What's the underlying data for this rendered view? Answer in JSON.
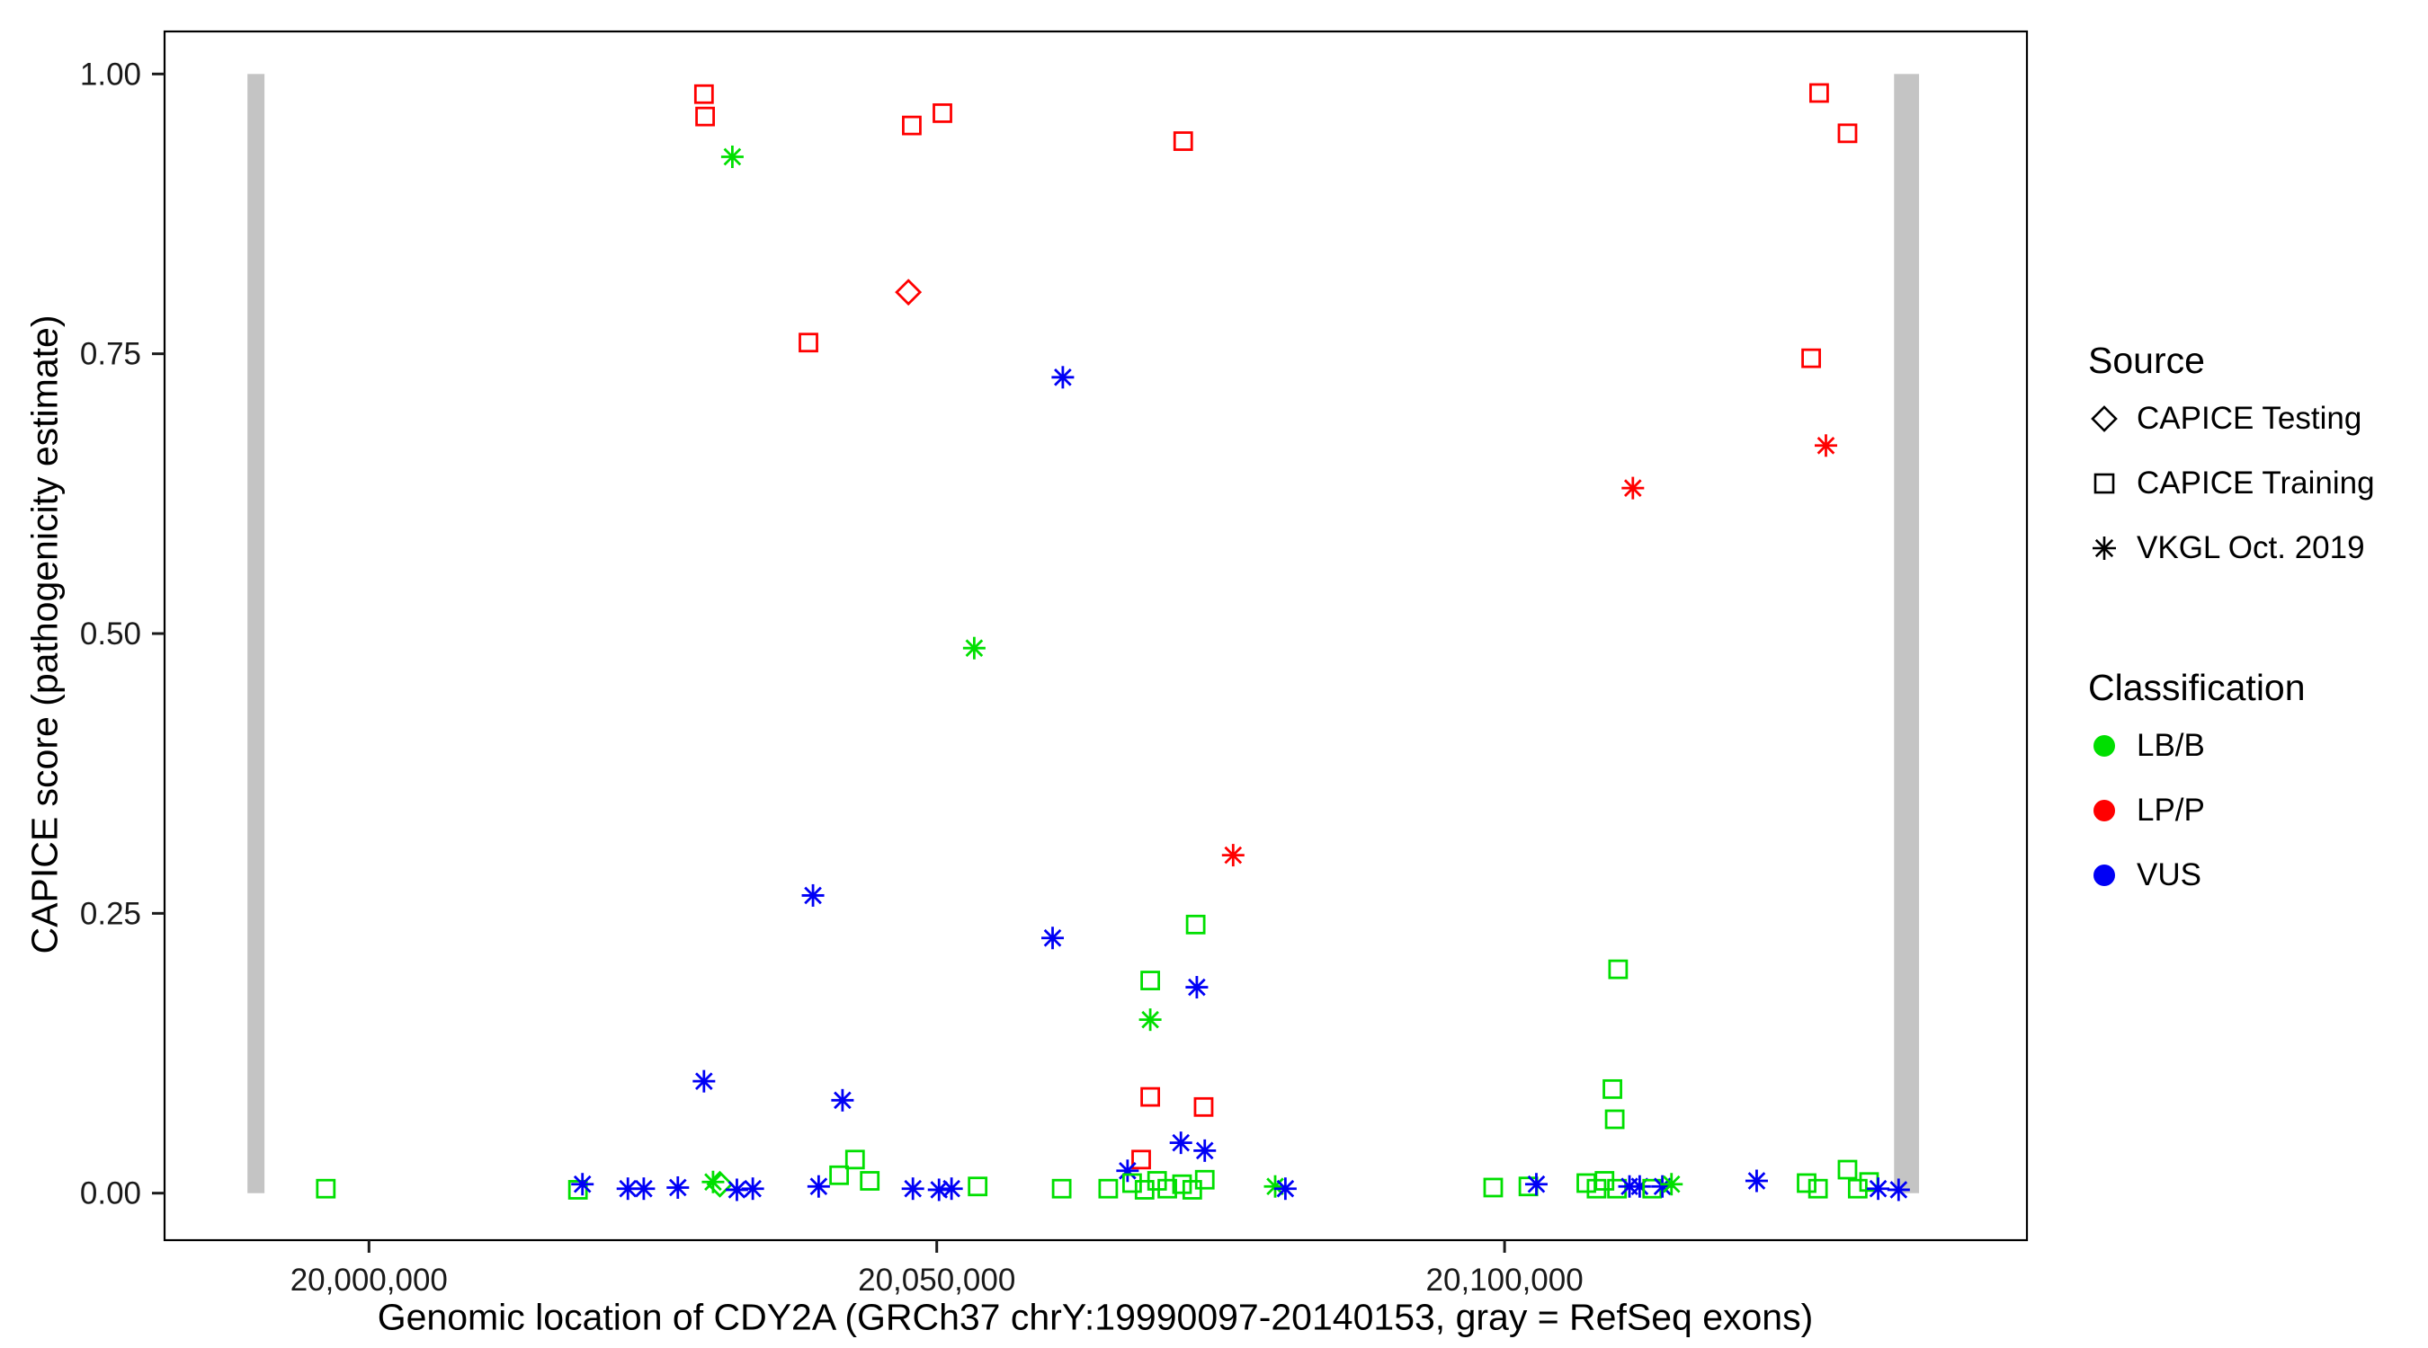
{
  "legend": {
    "source": {
      "title": "Source",
      "items": [
        {
          "label": "CAPICE Testing",
          "marker": "diamond"
        },
        {
          "label": "CAPICE Training",
          "marker": "square"
        },
        {
          "label": "VKGL Oct. 2019",
          "marker": "asterisk"
        }
      ]
    },
    "classification": {
      "title": "Classification",
      "items": [
        {
          "label": "LB/B",
          "color": "#00DF00"
        },
        {
          "label": "LP/P",
          "color": "#FF0000"
        },
        {
          "label": "VUS",
          "color": "#0000F5"
        }
      ]
    }
  },
  "chart_data": {
    "type": "scatter",
    "title": "",
    "xlabel": "Genomic location of CDY2A (GRCh37 chrY:19990097-20140153, gray = RefSeq exons)",
    "ylabel": "CAPICE score (pathogenicity estimate)",
    "x_domain": [
      19982000,
      20146000
    ],
    "y_domain": [
      -0.042,
      1.038
    ],
    "x_ticks": [
      {
        "value": 20000000,
        "label": "20,000,000"
      },
      {
        "value": 20050000,
        "label": "20,050,000"
      },
      {
        "value": 20100000,
        "label": "20,100,000"
      }
    ],
    "y_ticks": [
      {
        "value": 0.0,
        "label": "0.00"
      },
      {
        "value": 0.25,
        "label": "0.25"
      },
      {
        "value": 0.5,
        "label": "0.50"
      },
      {
        "value": 0.75,
        "label": "0.75"
      },
      {
        "value": 1.0,
        "label": "1.00"
      }
    ],
    "grid": false,
    "legend_position": "right",
    "exon_color": "#C4C4C4",
    "exons": [
      {
        "start": 19989300,
        "end": 19990800
      },
      {
        "start": 20134300,
        "end": 20136500
      }
    ],
    "class_colors": {
      "LB/B": "#00DF00",
      "LP/P": "#FF0000",
      "VUS": "#0000F5"
    },
    "source_markers": {
      "testing": "diamond",
      "training": "square",
      "vkgl": "asterisk"
    },
    "points": [
      {
        "x": 20029500,
        "y": 0.982,
        "src": "training",
        "cls": "LP/P"
      },
      {
        "x": 20029600,
        "y": 0.962,
        "src": "training",
        "cls": "LP/P"
      },
      {
        "x": 20032000,
        "y": 0.926,
        "src": "vkgl",
        "cls": "LB/B"
      },
      {
        "x": 20038700,
        "y": 0.76,
        "src": "training",
        "cls": "LP/P"
      },
      {
        "x": 20047500,
        "y": 0.805,
        "src": "testing",
        "cls": "LP/P"
      },
      {
        "x": 20047800,
        "y": 0.954,
        "src": "training",
        "cls": "LP/P"
      },
      {
        "x": 20050500,
        "y": 0.965,
        "src": "training",
        "cls": "LP/P"
      },
      {
        "x": 20071700,
        "y": 0.94,
        "src": "training",
        "cls": "LP/P"
      },
      {
        "x": 20061100,
        "y": 0.729,
        "src": "vkgl",
        "cls": "VUS"
      },
      {
        "x": 20053300,
        "y": 0.487,
        "src": "vkgl",
        "cls": "LB/B"
      },
      {
        "x": 20111300,
        "y": 0.63,
        "src": "vkgl",
        "cls": "LP/P"
      },
      {
        "x": 20127700,
        "y": 0.983,
        "src": "training",
        "cls": "LP/P"
      },
      {
        "x": 20130200,
        "y": 0.947,
        "src": "training",
        "cls": "LP/P"
      },
      {
        "x": 20127000,
        "y": 0.746,
        "src": "training",
        "cls": "LP/P"
      },
      {
        "x": 20128300,
        "y": 0.668,
        "src": "vkgl",
        "cls": "LP/P"
      },
      {
        "x": 20076100,
        "y": 0.302,
        "src": "vkgl",
        "cls": "LP/P"
      },
      {
        "x": 20039100,
        "y": 0.266,
        "src": "vkgl",
        "cls": "VUS"
      },
      {
        "x": 20060200,
        "y": 0.228,
        "src": "vkgl",
        "cls": "VUS"
      },
      {
        "x": 20072800,
        "y": 0.24,
        "src": "training",
        "cls": "LB/B"
      },
      {
        "x": 20068800,
        "y": 0.19,
        "src": "training",
        "cls": "LB/B"
      },
      {
        "x": 20072900,
        "y": 0.184,
        "src": "vkgl",
        "cls": "VUS"
      },
      {
        "x": 20068800,
        "y": 0.155,
        "src": "vkgl",
        "cls": "LB/B"
      },
      {
        "x": 20029500,
        "y": 0.1,
        "src": "vkgl",
        "cls": "VUS"
      },
      {
        "x": 20041700,
        "y": 0.083,
        "src": "vkgl",
        "cls": "VUS"
      },
      {
        "x": 20068800,
        "y": 0.086,
        "src": "training",
        "cls": "LP/P"
      },
      {
        "x": 20073500,
        "y": 0.077,
        "src": "training",
        "cls": "LP/P"
      },
      {
        "x": 20068000,
        "y": 0.03,
        "src": "training",
        "cls": "LP/P"
      },
      {
        "x": 20110000,
        "y": 0.2,
        "src": "training",
        "cls": "LB/B"
      },
      {
        "x": 20109500,
        "y": 0.093,
        "src": "training",
        "cls": "LB/B"
      },
      {
        "x": 20109700,
        "y": 0.066,
        "src": "training",
        "cls": "LB/B"
      },
      {
        "x": 20071500,
        "y": 0.045,
        "src": "vkgl",
        "cls": "VUS"
      },
      {
        "x": 20073600,
        "y": 0.038,
        "src": "vkgl",
        "cls": "VUS"
      },
      {
        "x": 20066800,
        "y": 0.02,
        "src": "vkgl",
        "cls": "VUS"
      },
      {
        "x": 20042800,
        "y": 0.03,
        "src": "training",
        "cls": "LB/B"
      },
      {
        "x": 20041400,
        "y": 0.016,
        "src": "training",
        "cls": "LB/B"
      },
      {
        "x": 19996200,
        "y": 0.004,
        "src": "training",
        "cls": "LB/B"
      },
      {
        "x": 20018400,
        "y": 0.003,
        "src": "training",
        "cls": "LB/B"
      },
      {
        "x": 20018800,
        "y": 0.008,
        "src": "vkgl",
        "cls": "VUS"
      },
      {
        "x": 20022800,
        "y": 0.004,
        "src": "vkgl",
        "cls": "VUS"
      },
      {
        "x": 20024200,
        "y": 0.004,
        "src": "vkgl",
        "cls": "VUS"
      },
      {
        "x": 20027200,
        "y": 0.005,
        "src": "vkgl",
        "cls": "VUS"
      },
      {
        "x": 20030300,
        "y": 0.01,
        "src": "vkgl",
        "cls": "LB/B"
      },
      {
        "x": 20030900,
        "y": 0.008,
        "src": "testing",
        "cls": "LB/B"
      },
      {
        "x": 20032400,
        "y": 0.003,
        "src": "vkgl",
        "cls": "VUS"
      },
      {
        "x": 20033800,
        "y": 0.004,
        "src": "vkgl",
        "cls": "VUS"
      },
      {
        "x": 20039600,
        "y": 0.006,
        "src": "vkgl",
        "cls": "VUS"
      },
      {
        "x": 20044100,
        "y": 0.011,
        "src": "training",
        "cls": "LB/B"
      },
      {
        "x": 20047900,
        "y": 0.004,
        "src": "vkgl",
        "cls": "VUS"
      },
      {
        "x": 20050200,
        "y": 0.003,
        "src": "vkgl",
        "cls": "VUS"
      },
      {
        "x": 20051300,
        "y": 0.004,
        "src": "vkgl",
        "cls": "VUS"
      },
      {
        "x": 20053600,
        "y": 0.006,
        "src": "training",
        "cls": "LB/B"
      },
      {
        "x": 20061000,
        "y": 0.004,
        "src": "training",
        "cls": "LB/B"
      },
      {
        "x": 20065100,
        "y": 0.004,
        "src": "training",
        "cls": "LB/B"
      },
      {
        "x": 20067200,
        "y": 0.009,
        "src": "training",
        "cls": "LB/B"
      },
      {
        "x": 20068300,
        "y": 0.003,
        "src": "training",
        "cls": "LB/B"
      },
      {
        "x": 20069400,
        "y": 0.011,
        "src": "training",
        "cls": "LB/B"
      },
      {
        "x": 20070300,
        "y": 0.004,
        "src": "training",
        "cls": "LB/B"
      },
      {
        "x": 20071600,
        "y": 0.008,
        "src": "training",
        "cls": "LB/B"
      },
      {
        "x": 20072500,
        "y": 0.003,
        "src": "training",
        "cls": "LB/B"
      },
      {
        "x": 20073600,
        "y": 0.012,
        "src": "training",
        "cls": "LB/B"
      },
      {
        "x": 20079800,
        "y": 0.006,
        "src": "vkgl",
        "cls": "LB/B"
      },
      {
        "x": 20080700,
        "y": 0.004,
        "src": "vkgl",
        "cls": "VUS"
      },
      {
        "x": 20099000,
        "y": 0.005,
        "src": "training",
        "cls": "LB/B"
      },
      {
        "x": 20102100,
        "y": 0.006,
        "src": "training",
        "cls": "LB/B"
      },
      {
        "x": 20102800,
        "y": 0.008,
        "src": "vkgl",
        "cls": "VUS"
      },
      {
        "x": 20107200,
        "y": 0.009,
        "src": "training",
        "cls": "LB/B"
      },
      {
        "x": 20108100,
        "y": 0.004,
        "src": "training",
        "cls": "LB/B"
      },
      {
        "x": 20108800,
        "y": 0.011,
        "src": "training",
        "cls": "LB/B"
      },
      {
        "x": 20109900,
        "y": 0.004,
        "src": "training",
        "cls": "LB/B"
      },
      {
        "x": 20111000,
        "y": 0.006,
        "src": "vkgl",
        "cls": "VUS"
      },
      {
        "x": 20111900,
        "y": 0.006,
        "src": "vkgl",
        "cls": "VUS"
      },
      {
        "x": 20113000,
        "y": 0.004,
        "src": "training",
        "cls": "LB/B"
      },
      {
        "x": 20113900,
        "y": 0.006,
        "src": "vkgl",
        "cls": "VUS"
      },
      {
        "x": 20114700,
        "y": 0.008,
        "src": "vkgl",
        "cls": "LB/B"
      },
      {
        "x": 20122200,
        "y": 0.011,
        "src": "vkgl",
        "cls": "VUS"
      },
      {
        "x": 20126600,
        "y": 0.009,
        "src": "training",
        "cls": "LB/B"
      },
      {
        "x": 20127600,
        "y": 0.004,
        "src": "training",
        "cls": "LB/B"
      },
      {
        "x": 20130200,
        "y": 0.021,
        "src": "training",
        "cls": "LB/B"
      },
      {
        "x": 20131100,
        "y": 0.004,
        "src": "training",
        "cls": "LB/B"
      },
      {
        "x": 20132100,
        "y": 0.01,
        "src": "training",
        "cls": "LB/B"
      },
      {
        "x": 20132900,
        "y": 0.004,
        "src": "vkgl",
        "cls": "VUS"
      },
      {
        "x": 20134700,
        "y": 0.003,
        "src": "vkgl",
        "cls": "VUS"
      }
    ]
  }
}
